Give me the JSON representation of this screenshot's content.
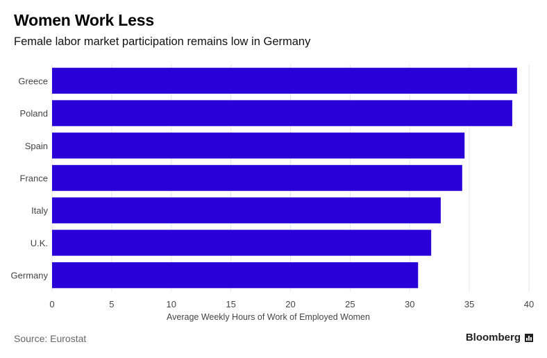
{
  "header": {
    "title": "Women Work Less",
    "subtitle": "Female labor market participation remains low in Germany"
  },
  "footer": {
    "source": "Source: Eurostat",
    "brand": "Bloomberg",
    "brand_icon": "bloomberg-logo-icon"
  },
  "colors": {
    "bar": "#2a00d9",
    "grid": "#e6e6e6",
    "axis_text": "#444444"
  },
  "chart_data": {
    "type": "bar",
    "orientation": "horizontal",
    "title": "Women Work Less",
    "subtitle": "Female labor market participation remains low in Germany",
    "categories": [
      "Greece",
      "Poland",
      "Spain",
      "France",
      "Italy",
      "U.K.",
      "Germany"
    ],
    "values": [
      39.0,
      38.6,
      34.6,
      34.4,
      32.6,
      31.8,
      30.7
    ],
    "xlabel": "Average Weekly Hours of Work of Employed Women",
    "ylabel": "",
    "xlim": [
      0,
      40
    ],
    "xticks": [
      0,
      5,
      10,
      15,
      20,
      25,
      30,
      35,
      40
    ],
    "grid": true
  }
}
